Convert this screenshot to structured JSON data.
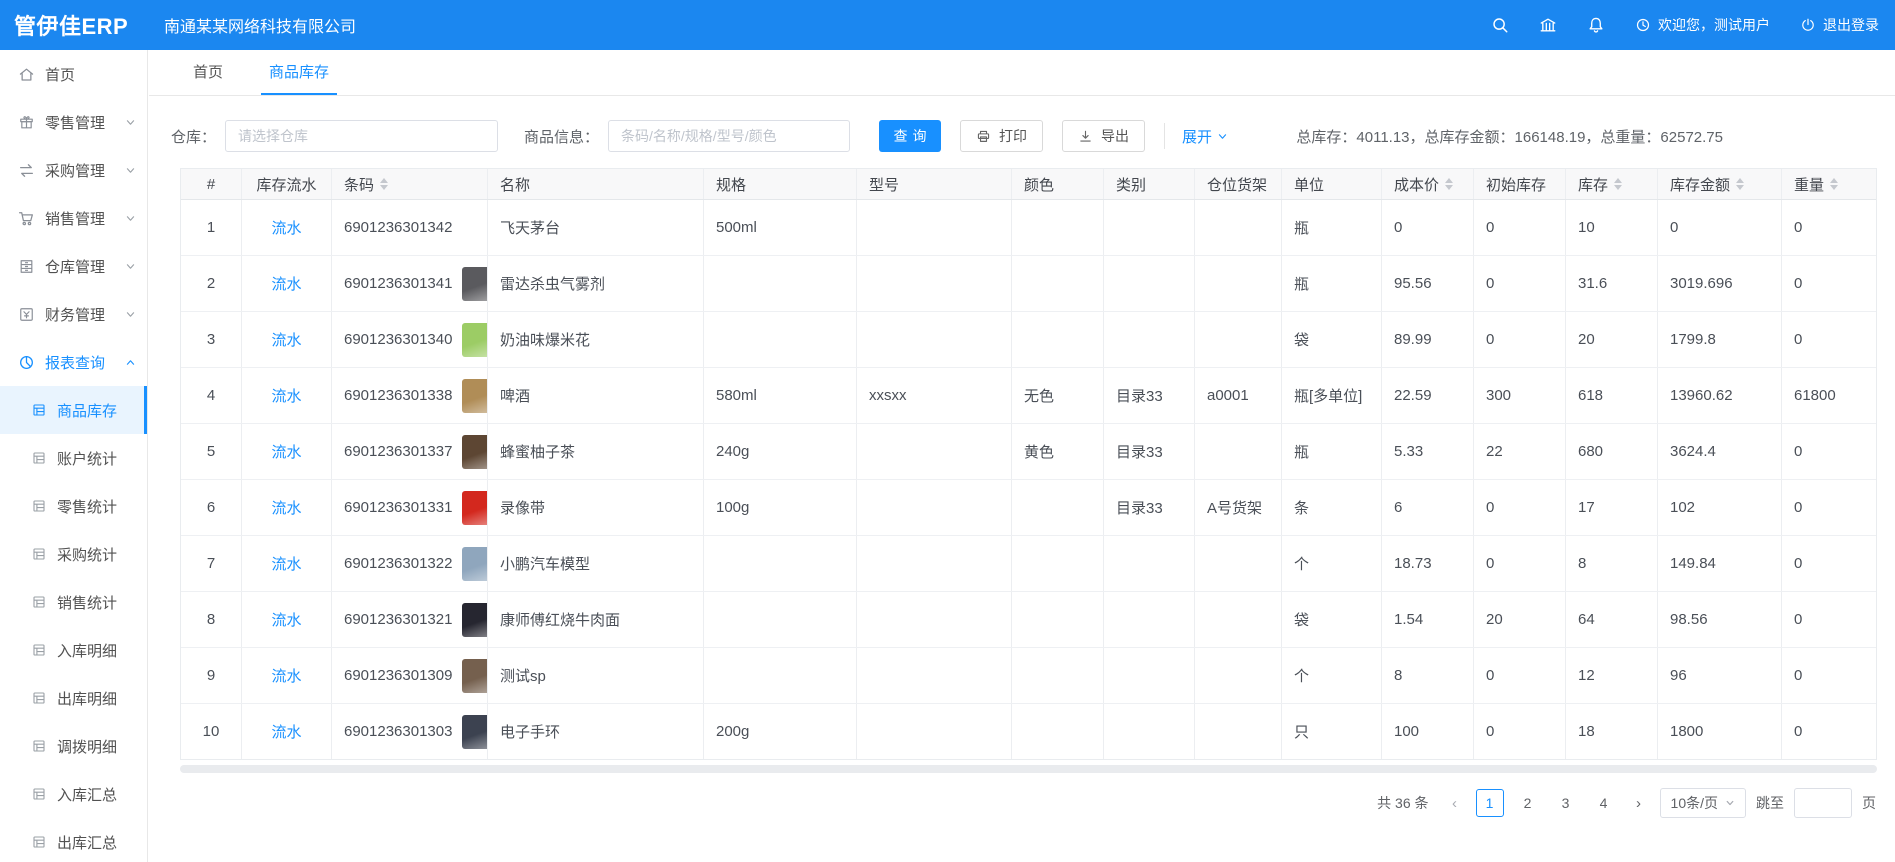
{
  "app": {
    "logo": "管伊佳ERP",
    "company": "南通某某网络科技有限公司"
  },
  "topbar": {
    "welcome": "欢迎您，测试用户",
    "logout": "退出登录"
  },
  "sidebar": {
    "items": [
      {
        "key": "home",
        "icon": "home-icon",
        "label": "首页"
      },
      {
        "key": "retail",
        "icon": "retail-icon",
        "label": "零售管理",
        "chevron": "down"
      },
      {
        "key": "purchase",
        "icon": "purchase-icon",
        "label": "采购管理",
        "chevron": "down"
      },
      {
        "key": "sales",
        "icon": "sales-icon",
        "label": "销售管理",
        "chevron": "down"
      },
      {
        "key": "warehouse",
        "icon": "warehouse-icon",
        "label": "仓库管理",
        "chevron": "down"
      },
      {
        "key": "finance",
        "icon": "finance-icon",
        "label": "财务管理",
        "chevron": "down"
      },
      {
        "key": "report",
        "icon": "report-icon",
        "label": "报表查询",
        "chevron": "up",
        "active": true
      }
    ],
    "submenu": [
      {
        "key": "goods-stock",
        "label": "商品库存",
        "active": true
      },
      {
        "key": "account-stats",
        "label": "账户统计"
      },
      {
        "key": "retail-stats",
        "label": "零售统计"
      },
      {
        "key": "purchase-stats",
        "label": "采购统计"
      },
      {
        "key": "sales-stats",
        "label": "销售统计"
      },
      {
        "key": "inbound-detail",
        "label": "入库明细"
      },
      {
        "key": "outbound-detail",
        "label": "出库明细"
      },
      {
        "key": "transfer-detail",
        "label": "调拨明细"
      },
      {
        "key": "inbound-summary",
        "label": "入库汇总"
      },
      {
        "key": "outbound-summary",
        "label": "出库汇总"
      }
    ]
  },
  "tabs": [
    {
      "key": "home",
      "label": "首页"
    },
    {
      "key": "goods-stock",
      "label": "商品库存",
      "active": true
    }
  ],
  "filters": {
    "warehouse_label": "仓库：",
    "warehouse_placeholder": "请选择仓库",
    "warehouse_value": "",
    "product_label": "商品信息：",
    "product_placeholder": "条码/名称/规格/型号/颜色",
    "product_value": "",
    "search_button": "查询",
    "print_button": "打印",
    "export_button": "导出",
    "expand_link": "展开",
    "summary": "总库存：4011.13，总库存金额：166148.19，总重量：62572.75"
  },
  "table": {
    "columns": [
      {
        "key": "idx",
        "label": "#"
      },
      {
        "key": "flow",
        "label": "库存流水"
      },
      {
        "key": "barcode",
        "label": "条码",
        "sortable": true
      },
      {
        "key": "name",
        "label": "名称"
      },
      {
        "key": "spec",
        "label": "规格"
      },
      {
        "key": "model",
        "label": "型号"
      },
      {
        "key": "color",
        "label": "颜色"
      },
      {
        "key": "category",
        "label": "类别"
      },
      {
        "key": "shelf",
        "label": "仓位货架"
      },
      {
        "key": "unit",
        "label": "单位"
      },
      {
        "key": "cost",
        "label": "成本价",
        "sortable": true
      },
      {
        "key": "init",
        "label": "初始库存"
      },
      {
        "key": "stock",
        "label": "库存",
        "sortable": true
      },
      {
        "key": "amount",
        "label": "库存金额",
        "sortable": true
      },
      {
        "key": "weight",
        "label": "重量",
        "sortable": true
      }
    ],
    "rows": [
      {
        "idx": "1",
        "flow": "流水",
        "barcode": "6901236301342",
        "thumb": null,
        "name": "飞天茅台",
        "spec": "500ml",
        "model": "",
        "color": "",
        "category": "",
        "shelf": "",
        "unit": "瓶",
        "cost": "0",
        "init": "0",
        "stock": "10",
        "amount": "0",
        "weight": "0"
      },
      {
        "idx": "2",
        "flow": "流水",
        "barcode": "6901236301341",
        "thumb": "#5a5a5e",
        "name": "雷达杀虫气雾剂",
        "spec": "",
        "model": "",
        "color": "",
        "category": "",
        "shelf": "",
        "unit": "瓶",
        "cost": "95.56",
        "init": "0",
        "stock": "31.6",
        "amount": "3019.696",
        "weight": "0"
      },
      {
        "idx": "3",
        "flow": "流水",
        "barcode": "6901236301340",
        "thumb": "#9ccc65",
        "name": "奶油味爆米花",
        "spec": "",
        "model": "",
        "color": "",
        "category": "",
        "shelf": "",
        "unit": "袋",
        "cost": "89.99",
        "init": "0",
        "stock": "20",
        "amount": "1799.8",
        "weight": "0"
      },
      {
        "idx": "4",
        "flow": "流水",
        "barcode": "6901236301338",
        "thumb": "#b08d57",
        "name": "啤酒",
        "spec": "580ml",
        "model": "xxsxx",
        "color": "无色",
        "category": "目录33",
        "shelf": "a0001",
        "unit": "瓶[多单位]",
        "cost": "22.59",
        "init": "300",
        "stock": "618",
        "amount": "13960.62",
        "weight": "61800"
      },
      {
        "idx": "5",
        "flow": "流水",
        "barcode": "6901236301337",
        "thumb": "#5d4633",
        "name": "蜂蜜柚子茶",
        "spec": "240g",
        "model": "",
        "color": "黄色",
        "category": "目录33",
        "shelf": "",
        "unit": "瓶",
        "cost": "5.33",
        "init": "22",
        "stock": "680",
        "amount": "3624.4",
        "weight": "0"
      },
      {
        "idx": "6",
        "flow": "流水",
        "barcode": "6901236301331",
        "thumb": "#d3281e",
        "name": "录像带",
        "spec": "100g",
        "model": "",
        "color": "",
        "category": "目录33",
        "shelf": "A号货架",
        "unit": "条",
        "cost": "6",
        "init": "0",
        "stock": "17",
        "amount": "102",
        "weight": "0"
      },
      {
        "idx": "7",
        "flow": "流水",
        "barcode": "6901236301322",
        "thumb": "#8fa6bd",
        "name": "小鹏汽车模型",
        "spec": "",
        "model": "",
        "color": "",
        "category": "",
        "shelf": "",
        "unit": "个",
        "cost": "18.73",
        "init": "0",
        "stock": "8",
        "amount": "149.84",
        "weight": "0"
      },
      {
        "idx": "8",
        "flow": "流水",
        "barcode": "6901236301321",
        "thumb": "#262630",
        "name": "康师傅红烧牛肉面",
        "spec": "",
        "model": "",
        "color": "",
        "category": "",
        "shelf": "",
        "unit": "袋",
        "cost": "1.54",
        "init": "20",
        "stock": "64",
        "amount": "98.56",
        "weight": "0"
      },
      {
        "idx": "9",
        "flow": "流水",
        "barcode": "6901236301309",
        "thumb": "#75604e",
        "name": "测试sp",
        "spec": "",
        "model": "",
        "color": "",
        "category": "",
        "shelf": "",
        "unit": "个",
        "cost": "8",
        "init": "0",
        "stock": "12",
        "amount": "96",
        "weight": "0"
      },
      {
        "idx": "10",
        "flow": "流水",
        "barcode": "6901236301303",
        "thumb": "#3c4250",
        "name": "电子手环",
        "spec": "200g",
        "model": "",
        "color": "",
        "category": "",
        "shelf": "",
        "unit": "只",
        "cost": "100",
        "init": "0",
        "stock": "18",
        "amount": "1800",
        "weight": "0"
      }
    ]
  },
  "pagination": {
    "total_label": "共 36 条",
    "pages": [
      "1",
      "2",
      "3",
      "4"
    ],
    "current": "1",
    "page_size_label": "10条/页",
    "jump_label": "跳至",
    "page_unit_label": "页",
    "jump_value": ""
  },
  "colors": {
    "primary": "#1890ff",
    "topbar": "#1b87f0",
    "submenu_active_bg": "#e9f4fe"
  }
}
